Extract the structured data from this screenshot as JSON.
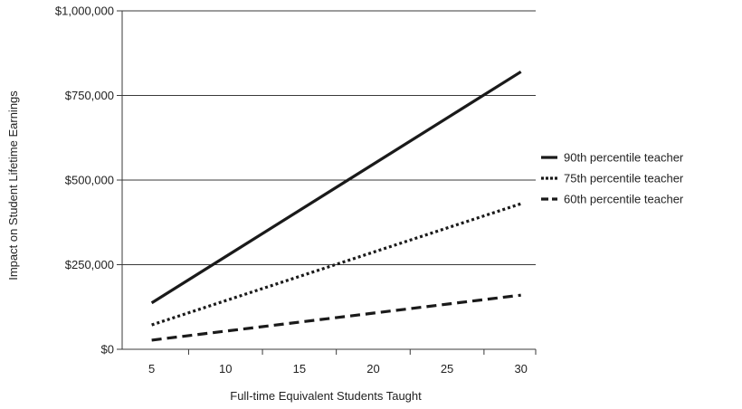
{
  "chart_data": {
    "type": "line",
    "title": "",
    "xlabel": "Full-time Equivalent Students Taught",
    "ylabel": "Impact on Student Lifetime Earnings",
    "x": [
      5,
      10,
      15,
      20,
      25,
      30
    ],
    "xlim": [
      3,
      31
    ],
    "ylim": [
      0,
      1000000
    ],
    "x_ticks": [
      "5",
      "10",
      "15",
      "20",
      "25",
      "30"
    ],
    "y_ticks": [
      {
        "value": 0,
        "label": "$0"
      },
      {
        "value": 250000,
        "label": "$250,000"
      },
      {
        "value": 500000,
        "label": "$500,000"
      },
      {
        "value": 750000,
        "label": "$750,000"
      },
      {
        "value": 1000000,
        "label": "$1,000,000"
      }
    ],
    "grid": "horizontal",
    "legend_position": "right",
    "series": [
      {
        "name": "90th percentile teacher",
        "style": "solid",
        "color": "#1a1a1a",
        "points": [
          [
            5,
            137000
          ],
          [
            30,
            820000
          ]
        ]
      },
      {
        "name": "75th percentile teacher",
        "style": "dotted",
        "color": "#1a1a1a",
        "points": [
          [
            5,
            72000
          ],
          [
            30,
            430000
          ]
        ]
      },
      {
        "name": "60th percentile teacher",
        "style": "dashed",
        "color": "#1a1a1a",
        "points": [
          [
            5,
            27000
          ],
          [
            30,
            160000
          ]
        ]
      }
    ]
  }
}
